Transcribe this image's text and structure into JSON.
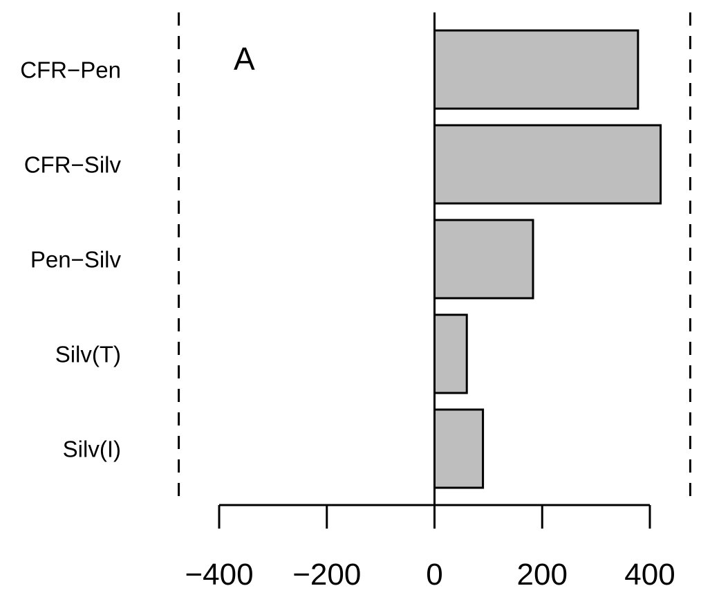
{
  "chart_data": {
    "type": "bar",
    "orientation": "horizontal",
    "annotation": "A",
    "categories": [
      "CFR−Pen",
      "CFR−Silv",
      "Pen−Silv",
      "Silv(T)",
      "Silv(I)"
    ],
    "values": [
      378,
      420,
      183,
      60,
      90
    ],
    "xlim": [
      -400,
      400
    ],
    "xticks": [
      -400,
      -200,
      0,
      200,
      400
    ],
    "xtick_labels": [
      "−400",
      "−200",
      "0",
      "200",
      "400"
    ],
    "reference_lines": [
      -475,
      475
    ],
    "bar_color": "#bebebe",
    "grid": false,
    "title": "",
    "xlabel": "",
    "ylabel": ""
  }
}
